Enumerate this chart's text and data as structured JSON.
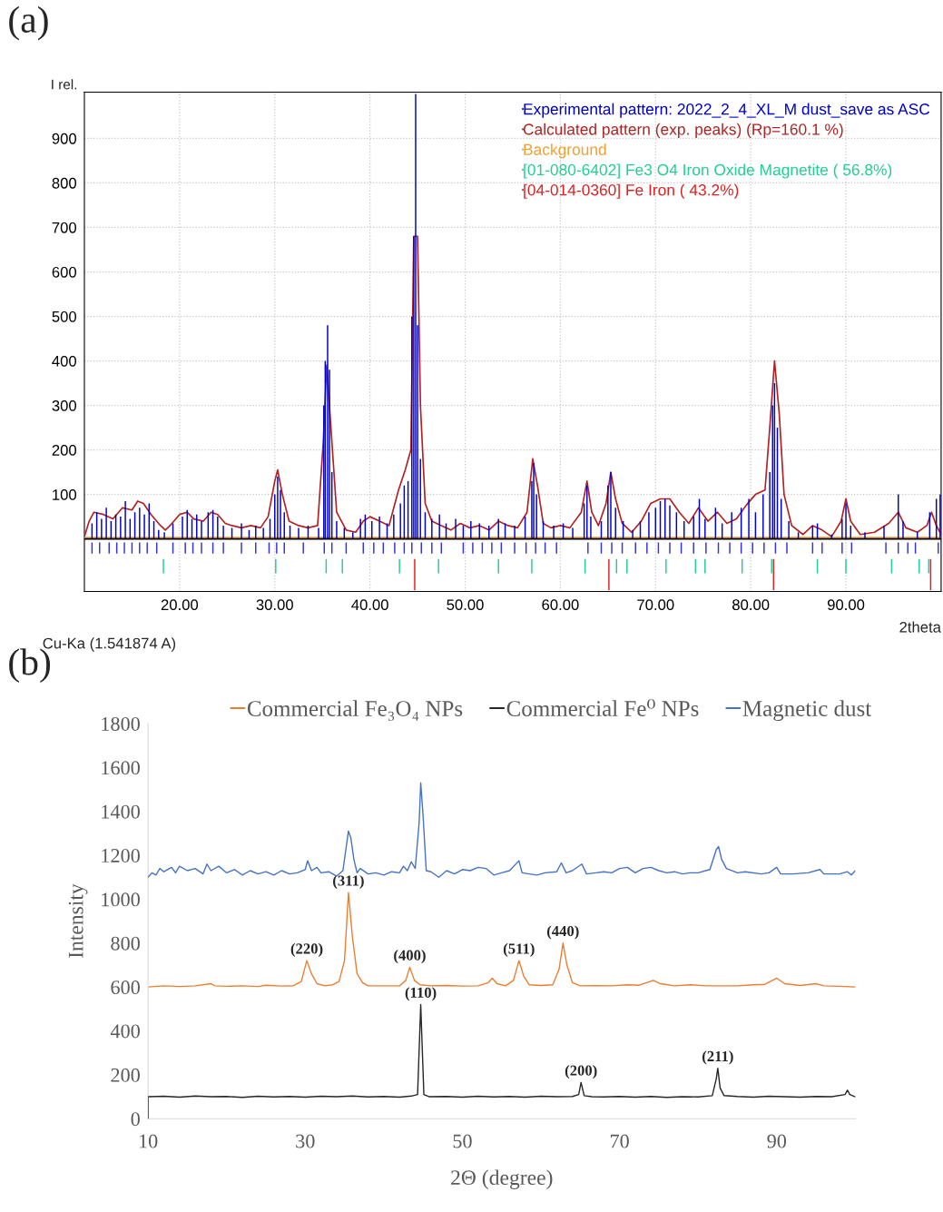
{
  "chart_data": [
    {
      "type": "bar",
      "title": "(a)",
      "xlabel": "2theta",
      "ylabel": "I rel.",
      "annotations": [
        "Cu-Ka (1.541874 A)"
      ],
      "xlim": [
        10,
        100
      ],
      "ylim": [
        -118,
        1004
      ],
      "xticks": [
        {
          "value": 20,
          "label": "20.00"
        },
        {
          "value": 30,
          "label": "30.00"
        },
        {
          "value": 40,
          "label": "40.00"
        },
        {
          "value": 50,
          "label": "50.00"
        },
        {
          "value": 60,
          "label": "60.00"
        },
        {
          "value": 70,
          "label": "70.00"
        },
        {
          "value": 80,
          "label": "80.00"
        },
        {
          "value": 90,
          "label": "90.00"
        }
      ],
      "yticks": [
        100,
        200,
        300,
        400,
        500,
        600,
        700,
        800,
        900
      ],
      "grid": true,
      "legend": "top right",
      "ref_lines": [
        {
          "axis": "y",
          "value": 0,
          "color": "#000000"
        }
      ],
      "series": [
        {
          "name": "Experimental pattern: 2022_2_4_XL_M dust_save as ASC",
          "type": "bar",
          "color": "#0000cc",
          "x": [
            10.8,
            11.3,
            11.8,
            12.3,
            12.8,
            13.3,
            13.8,
            14.3,
            14.8,
            15.3,
            15.8,
            16.3,
            16.8,
            17.3,
            17.8,
            18.4,
            19.3,
            20.3,
            20.8,
            21.3,
            21.8,
            22.3,
            23.0,
            23.5,
            24.0,
            24.6,
            25.5,
            26.5,
            27.3,
            28.0,
            28.8,
            29.5,
            30.0,
            30.3,
            30.6,
            31.0,
            31.6,
            32.5,
            33.5,
            34.6,
            35.15,
            35.3,
            35.55,
            35.75,
            36.0,
            36.5,
            37.3,
            38.2,
            39.0,
            39.5,
            40.2,
            41.0,
            41.8,
            42.5,
            43.2,
            43.6,
            44.0,
            44.4,
            44.6,
            44.8,
            45.0,
            45.3,
            45.8,
            46.5,
            47.3,
            48.0,
            49.0,
            49.8,
            50.6,
            51.5,
            52.5,
            53.5,
            54.2,
            55.2,
            56.3,
            57.0,
            57.2,
            57.5,
            58.2,
            59.3,
            60.3,
            61.3,
            62.5,
            62.8,
            63.2,
            64.3,
            65.0,
            65.3,
            65.8,
            66.6,
            67.6,
            68.4,
            69.3,
            70.0,
            70.5,
            71.0,
            71.5,
            72.2,
            73.0,
            74.0,
            74.6,
            75.2,
            76.3,
            77.0,
            78.0,
            79.0,
            79.8,
            80.5,
            81.3,
            82.0,
            82.3,
            82.5,
            82.8,
            83.2,
            84.0,
            85.0,
            86.5,
            87.0,
            88.5,
            89.6,
            90.0,
            90.5,
            92.0,
            94.0,
            95.5,
            96.0,
            97.5,
            98.8,
            99.5,
            99.9
          ],
          "values": [
            35,
            60,
            45,
            70,
            40,
            55,
            50,
            85,
            45,
            60,
            70,
            55,
            80,
            40,
            20,
            15,
            35,
            50,
            65,
            45,
            55,
            40,
            60,
            65,
            50,
            30,
            25,
            35,
            20,
            30,
            25,
            45,
            100,
            140,
            110,
            60,
            30,
            25,
            30,
            25,
            300,
            400,
            480,
            380,
            150,
            40,
            25,
            15,
            45,
            55,
            40,
            50,
            35,
            55,
            80,
            120,
            130,
            500,
            680,
            1000,
            480,
            180,
            60,
            45,
            55,
            35,
            45,
            30,
            40,
            35,
            30,
            45,
            35,
            30,
            50,
            130,
            170,
            100,
            40,
            30,
            35,
            25,
            80,
            120,
            50,
            40,
            120,
            150,
            70,
            40,
            20,
            40,
            60,
            70,
            85,
            90,
            75,
            60,
            40,
            50,
            90,
            45,
            70,
            35,
            60,
            70,
            90,
            60,
            100,
            150,
            300,
            350,
            250,
            90,
            40,
            15,
            30,
            35,
            10,
            45,
            80,
            30,
            15,
            30,
            100,
            40,
            15,
            60,
            90,
            100
          ]
        },
        {
          "name": "Calculated pattern (exp. peaks) (Rp=160.1 %)",
          "type": "line",
          "color": "#b22222",
          "x": [
            10,
            10.5,
            11,
            12,
            13,
            14,
            15,
            15.6,
            16.2,
            17,
            18,
            18.5,
            19,
            20,
            20.8,
            21.5,
            22.5,
            23.3,
            24,
            24.8,
            25.5,
            26.5,
            27.5,
            28.5,
            29.3,
            30,
            30.3,
            30.8,
            31.5,
            32.5,
            33.5,
            34.5,
            35.1,
            35.45,
            35.9,
            36.5,
            37.5,
            38.5,
            39.3,
            40,
            41,
            42,
            43,
            43.7,
            44.3,
            44.6,
            45,
            45.3,
            45.8,
            46.5,
            47.5,
            48.5,
            49.5,
            50.5,
            51.5,
            52.5,
            53.5,
            54.5,
            55.5,
            56.5,
            57.1,
            57.6,
            58.2,
            59,
            60,
            61,
            62.2,
            62.8,
            63.3,
            64,
            64.8,
            65.3,
            65.8,
            66.5,
            67.5,
            68.5,
            69.5,
            70.5,
            71.5,
            72.5,
            73.5,
            74.5,
            75.5,
            76.5,
            77.5,
            78.5,
            79.5,
            80.5,
            81.5,
            82,
            82.5,
            83,
            83.5,
            84.3,
            85.5,
            86.5,
            87.5,
            88.5,
            89.5,
            90,
            90.5,
            91.5,
            93,
            94.5,
            95.5,
            96.3,
            97.5,
            98.5,
            99,
            99.5,
            100
          ],
          "values": [
            5,
            40,
            60,
            55,
            45,
            70,
            65,
            85,
            80,
            55,
            30,
            20,
            30,
            55,
            60,
            45,
            40,
            60,
            55,
            35,
            30,
            25,
            30,
            25,
            50,
            130,
            155,
            100,
            40,
            30,
            25,
            30,
            220,
            390,
            250,
            60,
            20,
            15,
            40,
            50,
            40,
            30,
            110,
            155,
            200,
            680,
            680,
            300,
            80,
            40,
            30,
            20,
            35,
            25,
            30,
            20,
            40,
            30,
            25,
            60,
            180,
            120,
            35,
            25,
            30,
            25,
            60,
            130,
            60,
            30,
            80,
            150,
            90,
            35,
            15,
            40,
            80,
            90,
            90,
            60,
            35,
            70,
            40,
            60,
            35,
            45,
            75,
            100,
            110,
            250,
            400,
            280,
            100,
            30,
            10,
            30,
            20,
            5,
            40,
            90,
            40,
            10,
            15,
            35,
            60,
            25,
            15,
            30,
            60,
            30,
            10
          ]
        },
        {
          "name": "Background",
          "type": "line",
          "color": "#f0a030",
          "x": [
            10,
            100
          ],
          "values": [
            3,
            3
          ]
        },
        {
          "name": "[01-080-6402] Fe3 O4 Iron Oxide Magnetite ( 56.8%)",
          "type": "bar",
          "color": "#20d090",
          "x": [
            18.3,
            30.1,
            35.4,
            37.1,
            43.1,
            47.2,
            53.5,
            57.0,
            62.6,
            65.9,
            67.0,
            71.1,
            74.2,
            75.2,
            79.1,
            82.2,
            87.0,
            90.0,
            94.8,
            97.7,
            98.7
          ],
          "base": [
            -45,
            -45,
            -45,
            -45,
            -45,
            -45,
            -45,
            -45,
            -45,
            -45,
            -45,
            -45,
            -45,
            -45,
            -45,
            -45,
            -45,
            -45,
            -45,
            -45,
            -45
          ],
          "values": [
            -32,
            -32,
            -32,
            -32,
            -32,
            -32,
            -32,
            -32,
            -32,
            -32,
            -32,
            -32,
            -32,
            -32,
            -32,
            -32,
            -32,
            -32,
            -32,
            -32,
            -32
          ]
        },
        {
          "name": "[04-014-0360] Fe Iron ( 43.2%)",
          "type": "bar",
          "color": "#e02020",
          "x": [
            44.7,
            65.1,
            82.4,
            98.9
          ],
          "base": [
            -45,
            -45,
            -45,
            -45
          ],
          "values": [
            -70,
            -70,
            -70,
            -70
          ]
        },
        {
          "type": "bar",
          "color": "#3333dd",
          "x": [
            10.8,
            11.6,
            12.6,
            13.4,
            14.2,
            15.0,
            15.8,
            16.6,
            17.6,
            19.3,
            20.6,
            21.4,
            22.3,
            23.5,
            24.6,
            26.5,
            28.0,
            29.4,
            30.2,
            31.0,
            33.0,
            35.2,
            36.0,
            37.5,
            39.3,
            40.4,
            41.4,
            42.6,
            43.6,
            44.4,
            45.4,
            46.5,
            47.5,
            49.8,
            50.8,
            51.8,
            52.8,
            53.8,
            55.2,
            56.4,
            57.4,
            58.4,
            59.6,
            62.9,
            64.3,
            65.4,
            66.5,
            67.9,
            69.1,
            70.3,
            71.5,
            72.7,
            74.0,
            75.3,
            76.6,
            77.8,
            79.0,
            80.2,
            81.4,
            82.6,
            83.8,
            86.5,
            87.5,
            89.6,
            90.6,
            94.2,
            95.5,
            96.5,
            97.3,
            99.7
          ],
          "base": [
            -8,
            -8,
            -8,
            -8,
            -8,
            -8,
            -8,
            -8,
            -8,
            -8,
            -8,
            -8,
            -8,
            -8,
            -8,
            -8,
            -8,
            -8,
            -8,
            -8,
            -8,
            -8,
            -8,
            -8,
            -8,
            -8,
            -8,
            -8,
            -8,
            -8,
            -8,
            -8,
            -8,
            -8,
            -8,
            -8,
            -8,
            -8,
            -8,
            -8,
            -8,
            -8,
            -8,
            -8,
            -8,
            -8,
            -8,
            -8,
            -8,
            -8,
            -8,
            -8,
            -8,
            -8,
            -8,
            -8,
            -8,
            -8,
            -8,
            -8,
            -8,
            -8,
            -8,
            -8,
            -8,
            -8,
            -8,
            -8,
            -8,
            -8
          ],
          "values": [
            -25,
            -25,
            -25,
            -25,
            -25,
            -25,
            -25,
            -25,
            -25,
            -25,
            -25,
            -25,
            -25,
            -25,
            -25,
            -25,
            -25,
            -25,
            -25,
            -25,
            -25,
            -25,
            -25,
            -25,
            -25,
            -25,
            -25,
            -25,
            -25,
            -25,
            -25,
            -25,
            -25,
            -25,
            -25,
            -25,
            -25,
            -25,
            -25,
            -25,
            -25,
            -25,
            -25,
            -25,
            -25,
            -25,
            -25,
            -25,
            -25,
            -25,
            -25,
            -25,
            -25,
            -25,
            -25,
            -25,
            -25,
            -25,
            -25,
            -25,
            -25,
            -25,
            -25,
            -25,
            -25,
            -25,
            -25,
            -25,
            -25,
            -25
          ]
        }
      ]
    },
    {
      "type": "line",
      "title": "(b)",
      "xlabel": "2Θ (degree)",
      "ylabel": "Intensity",
      "xlim": [
        10,
        100
      ],
      "ylim": [
        0,
        1800
      ],
      "xticks": [
        10,
        30,
        50,
        70,
        90
      ],
      "yticks": [
        0,
        200,
        400,
        600,
        800,
        1000,
        1200,
        1400,
        1600,
        1800
      ],
      "legend": "top",
      "annotations": [
        {
          "text": "(220)",
          "x": 30.2,
          "y": 720
        },
        {
          "text": "(311)",
          "x": 35.5,
          "y": 1030
        },
        {
          "text": "(400)",
          "x": 43.3,
          "y": 690
        },
        {
          "text": "(511)",
          "x": 57.2,
          "y": 720
        },
        {
          "text": "(440)",
          "x": 62.8,
          "y": 800
        },
        {
          "text": "(110)",
          "x": 44.7,
          "y": 520
        },
        {
          "text": "(200)",
          "x": 65.1,
          "y": 165
        },
        {
          "text": "(211)",
          "x": 82.5,
          "y": 230
        }
      ],
      "series": [
        {
          "name": "Commercial Fe₃O₄ NPs",
          "color": "#ed7d31",
          "x": [
            10,
            12,
            14,
            16,
            18,
            18.5,
            20,
            22,
            24,
            25,
            27,
            28.5,
            29.5,
            30.2,
            30.8,
            31.5,
            32.5,
            33.5,
            34.3,
            35,
            35.5,
            36,
            36.6,
            37.3,
            38,
            40,
            42,
            42.8,
            43.3,
            43.9,
            44.6,
            46,
            48,
            50,
            52,
            53.3,
            53.8,
            54.4,
            55.5,
            56.5,
            57.2,
            57.8,
            58.5,
            60,
            61.5,
            62.3,
            62.8,
            63.3,
            64,
            65,
            67,
            69,
            71,
            72.5,
            74.3,
            75.2,
            77,
            79,
            81,
            83,
            85,
            87,
            88.5,
            90,
            91,
            93,
            95,
            96,
            98,
            100
          ],
          "values": [
            600,
            605,
            602,
            605,
            615,
            605,
            603,
            605,
            602,
            608,
            604,
            606,
            625,
            720,
            660,
            615,
            605,
            610,
            625,
            720,
            1030,
            830,
            660,
            620,
            605,
            605,
            605,
            630,
            690,
            630,
            610,
            605,
            607,
            604,
            605,
            620,
            640,
            615,
            605,
            630,
            720,
            650,
            610,
            607,
            610,
            680,
            800,
            700,
            620,
            605,
            606,
            605,
            610,
            608,
            630,
            615,
            605,
            610,
            605,
            605,
            605,
            610,
            612,
            640,
            615,
            607,
            615,
            605,
            603,
            600
          ]
        },
        {
          "name": "Commercial Fe⁰ NPs",
          "color": "#262626",
          "x": [
            10,
            10,
            12,
            14,
            16,
            18,
            20,
            22,
            24,
            26,
            28,
            30,
            32,
            34,
            36,
            38,
            40,
            42,
            43.5,
            44.3,
            44.7,
            45.1,
            45.8,
            48,
            50,
            52,
            54,
            56,
            58,
            60,
            62,
            64,
            64.8,
            65.1,
            65.5,
            66.5,
            68,
            70,
            72,
            74,
            76,
            78,
            80,
            81.8,
            82.3,
            82.5,
            82.8,
            83.3,
            85,
            87,
            89,
            91,
            93,
            95,
            97,
            98.7,
            99,
            99.3,
            100
          ],
          "values": [
            0,
            100,
            102,
            98,
            103,
            100,
            101,
            97,
            102,
            99,
            101,
            98,
            102,
            100,
            103,
            99,
            101,
            98,
            103,
            110,
            520,
            110,
            100,
            101,
            98,
            102,
            99,
            101,
            98,
            102,
            100,
            101,
            110,
            165,
            105,
            100,
            99,
            101,
            98,
            101,
            97,
            100,
            99,
            105,
            180,
            230,
            140,
            105,
            101,
            98,
            102,
            100,
            98,
            101,
            100,
            110,
            130,
            110,
            100
          ]
        },
        {
          "name": "Magnetic dust",
          "color": "#4472c4",
          "x": [
            10,
            10.5,
            11,
            11.5,
            12,
            13,
            13.5,
            14,
            15,
            16,
            17,
            17.5,
            18,
            19,
            20,
            21,
            22,
            23,
            24,
            25,
            26,
            27,
            28,
            29,
            30,
            30.3,
            30.8,
            31.5,
            32,
            33,
            34,
            34.8,
            35.3,
            35.5,
            35.8,
            36.2,
            36.6,
            37,
            38,
            39,
            40,
            41,
            42,
            42.5,
            43,
            43.5,
            44,
            44.5,
            44.7,
            45,
            45.4,
            46,
            47,
            48,
            49,
            50,
            51,
            52,
            53,
            54,
            55,
            56,
            57.2,
            57.6,
            58.5,
            59.5,
            60.5,
            62,
            62.6,
            63.2,
            64,
            65.2,
            65.8,
            67,
            68,
            69,
            70,
            71,
            72,
            73,
            74,
            75,
            76,
            77,
            78,
            79,
            80,
            81.5,
            82.3,
            82.6,
            83,
            83.6,
            85,
            86,
            88,
            89,
            90,
            90.5,
            92,
            94,
            95.5,
            96,
            98,
            99,
            99.5,
            100
          ],
          "values": [
            1100,
            1120,
            1110,
            1140,
            1125,
            1145,
            1120,
            1150,
            1130,
            1140,
            1115,
            1160,
            1130,
            1150,
            1120,
            1135,
            1110,
            1130,
            1115,
            1125,
            1110,
            1130,
            1115,
            1120,
            1135,
            1175,
            1130,
            1145,
            1120,
            1125,
            1105,
            1130,
            1260,
            1310,
            1280,
            1180,
            1120,
            1140,
            1115,
            1120,
            1110,
            1125,
            1120,
            1150,
            1130,
            1170,
            1140,
            1350,
            1530,
            1380,
            1130,
            1125,
            1100,
            1130,
            1115,
            1135,
            1130,
            1145,
            1140,
            1110,
            1120,
            1130,
            1175,
            1120,
            1115,
            1110,
            1120,
            1125,
            1165,
            1120,
            1130,
            1160,
            1115,
            1120,
            1125,
            1120,
            1140,
            1145,
            1120,
            1140,
            1145,
            1130,
            1120,
            1125,
            1115,
            1120,
            1120,
            1135,
            1225,
            1240,
            1180,
            1140,
            1120,
            1125,
            1115,
            1120,
            1145,
            1115,
            1115,
            1120,
            1135,
            1115,
            1115,
            1125,
            1110,
            1130
          ]
        }
      ]
    }
  ]
}
